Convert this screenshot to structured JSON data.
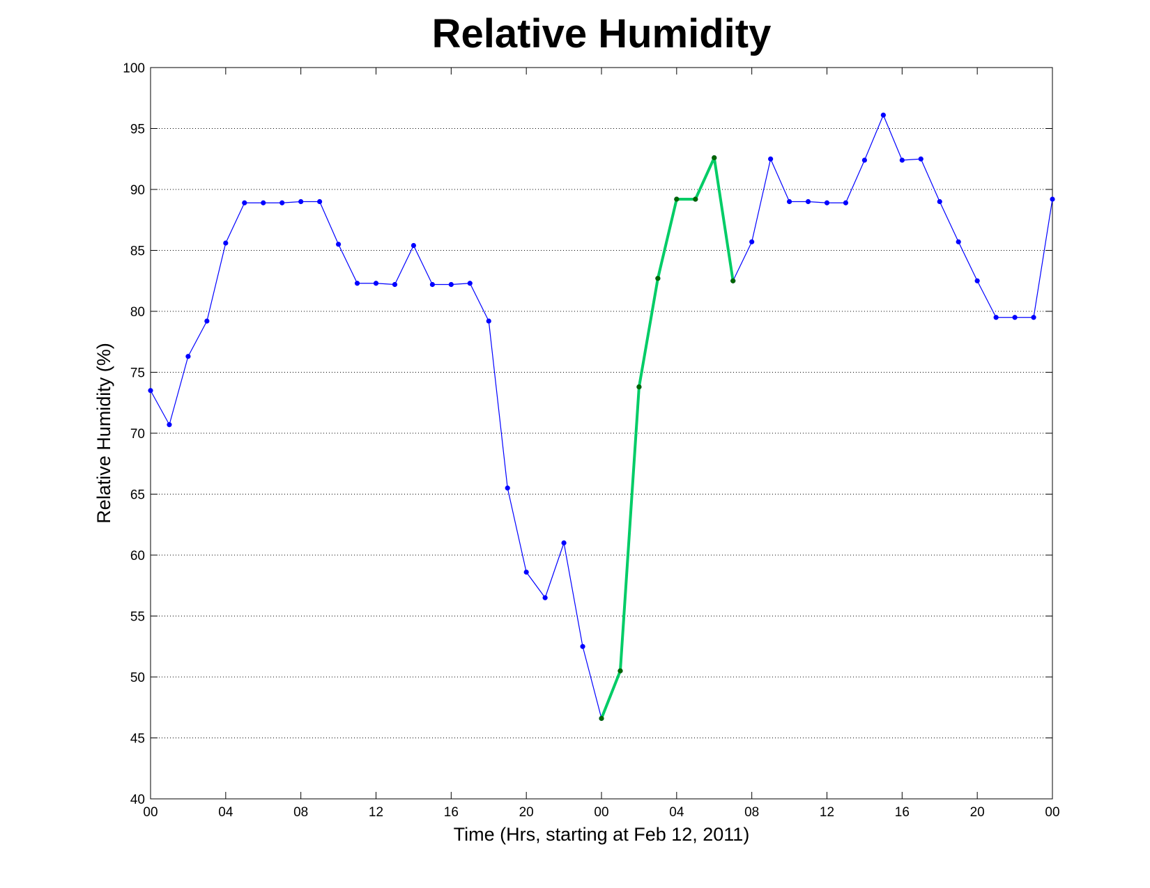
{
  "chart_data": {
    "type": "line",
    "title": "Relative Humidity",
    "xlabel": "Time (Hrs, starting at Feb 12, 2011)",
    "ylabel": "Relative Humidity (%)",
    "ylim": [
      40,
      100
    ],
    "xlim": [
      0,
      48
    ],
    "x_ticks": [
      0,
      4,
      8,
      12,
      16,
      20,
      24,
      28,
      32,
      36,
      40,
      44,
      48
    ],
    "x_tick_labels": [
      "00",
      "04",
      "08",
      "12",
      "16",
      "20",
      "00",
      "04",
      "08",
      "12",
      "16",
      "20",
      "00"
    ],
    "y_ticks": [
      40,
      45,
      50,
      55,
      60,
      65,
      70,
      75,
      80,
      85,
      90,
      95,
      100
    ],
    "grid": "dotted horizontal",
    "series": [
      {
        "color": "#0000ff",
        "marker": "dot",
        "x": [
          0,
          1,
          2,
          3,
          4,
          5,
          6,
          7,
          8,
          9,
          10,
          11,
          12,
          13,
          14,
          15,
          16,
          17,
          18,
          19,
          20,
          21,
          22,
          23,
          24,
          25,
          26,
          27,
          28,
          29,
          30,
          31,
          32,
          33,
          34,
          35,
          36,
          37,
          38,
          39,
          40,
          41,
          42,
          43,
          44,
          45,
          46,
          47,
          48
        ],
        "values": [
          73.5,
          70.7,
          76.3,
          79.2,
          85.6,
          88.9,
          88.9,
          88.9,
          89.0,
          89.0,
          85.5,
          82.3,
          82.3,
          82.2,
          85.4,
          82.2,
          82.2,
          82.3,
          79.2,
          65.5,
          58.6,
          56.5,
          61.0,
          52.5,
          46.6,
          50.5,
          73.8,
          82.7,
          89.2,
          89.2,
          92.6,
          82.5,
          85.7,
          92.5,
          89.0,
          89.0,
          88.9,
          88.9,
          92.4,
          96.1,
          92.4,
          92.5,
          89.0,
          85.7,
          82.5,
          79.5,
          79.5,
          79.5,
          89.2
        ]
      },
      {
        "color": "#00cc66",
        "marker_color": "#006600",
        "marker": "dot",
        "x": [
          24,
          25,
          26,
          27,
          28,
          29,
          30,
          31
        ],
        "values": [
          46.6,
          50.5,
          73.8,
          82.7,
          89.2,
          89.2,
          92.6,
          82.5
        ]
      }
    ]
  }
}
